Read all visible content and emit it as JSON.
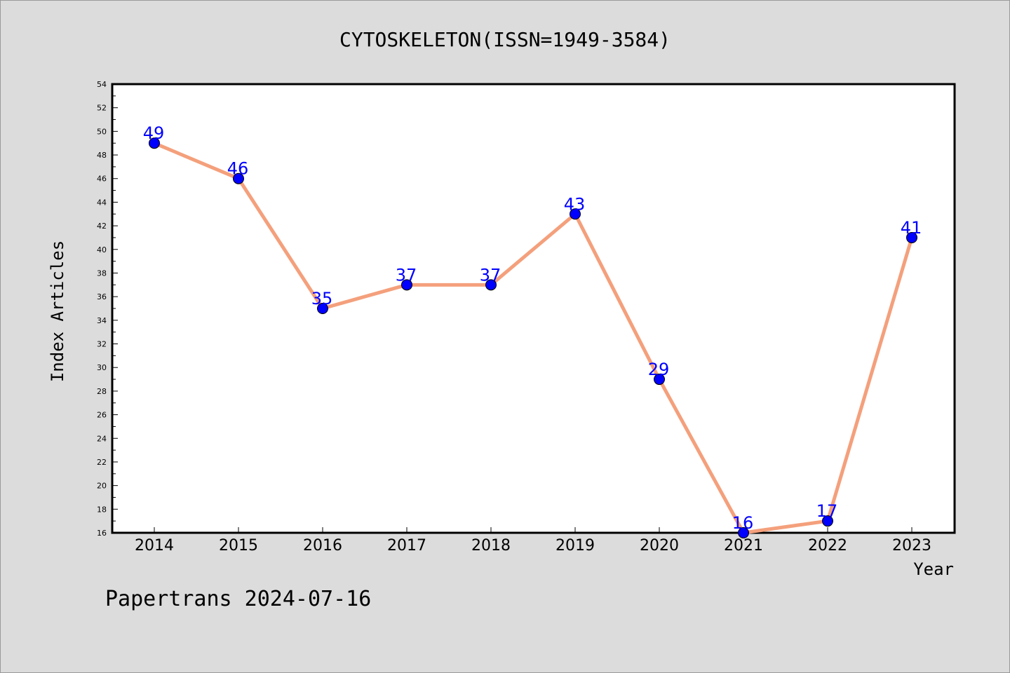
{
  "chart_data": {
    "type": "line",
    "title": "CYTOSKELETON(ISSN=1949-3584)",
    "xlabel": "Year",
    "ylabel": "Index Articles",
    "categories": [
      "2014",
      "2015",
      "2016",
      "2017",
      "2018",
      "2019",
      "2020",
      "2021",
      "2022",
      "2023"
    ],
    "values": [
      49,
      46,
      35,
      37,
      37,
      43,
      29,
      16,
      17,
      41
    ],
    "data_labels": [
      "49",
      "46",
      "35",
      "37",
      "37",
      "43",
      "29",
      "16",
      "17",
      "41"
    ],
    "ylim": [
      16,
      54
    ],
    "yticks": [
      "16",
      "18",
      "20",
      "22",
      "24",
      "26",
      "28",
      "30",
      "32",
      "34",
      "36",
      "38",
      "40",
      "42",
      "44",
      "46",
      "48",
      "50",
      "52",
      "54"
    ],
    "grid": false,
    "line_color": "#f4a07c",
    "marker_color": "#0000ff",
    "label_color": "#0000ff",
    "plot_background": "#ffffff",
    "page_background": "#dcdcdc"
  },
  "footer": {
    "text": "Papertrans 2024-07-16"
  }
}
